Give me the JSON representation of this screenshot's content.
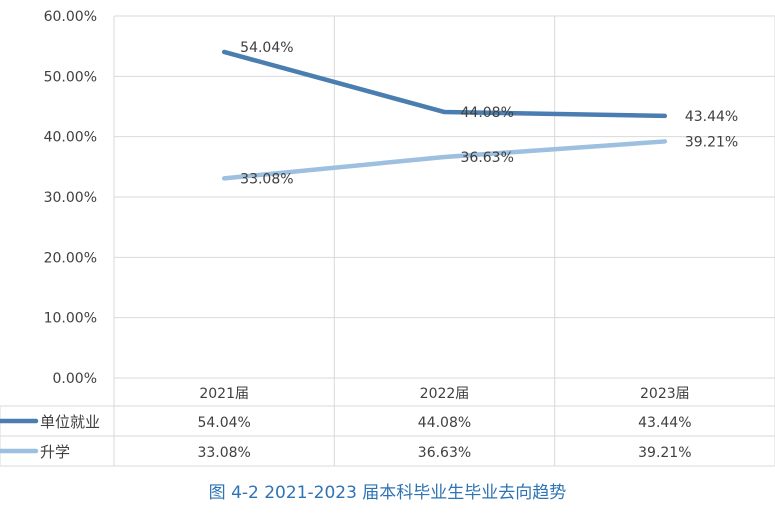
{
  "chart_data": {
    "type": "line",
    "categories": [
      "2021届",
      "2022届",
      "2023届"
    ],
    "series": [
      {
        "name": "单位就业",
        "values": [
          54.04,
          44.08,
          43.44
        ],
        "labels": [
          "54.04%",
          "44.08%",
          "43.44%"
        ],
        "color": "#4a7eb0"
      },
      {
        "name": "升学",
        "values": [
          33.08,
          36.63,
          39.21
        ],
        "labels": [
          "33.08%",
          "36.63%",
          "39.21%"
        ],
        "color": "#9dbfe0"
      }
    ],
    "yticks": [
      "0.00%",
      "10.00%",
      "20.00%",
      "30.00%",
      "40.00%",
      "50.00%",
      "60.00%"
    ],
    "ylim": [
      0,
      60
    ],
    "grid": true,
    "legend": "data-table",
    "data_table": true
  },
  "caption": "图 4-2 2021-2023 届本科毕业生毕业去向趋势"
}
